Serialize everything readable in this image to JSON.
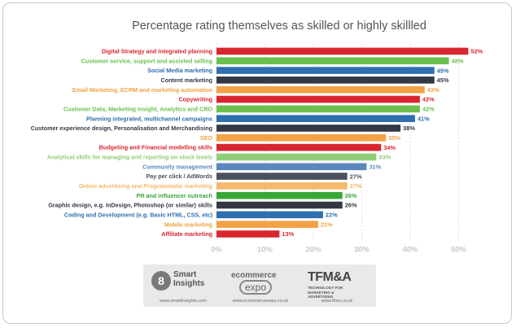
{
  "chart_data": {
    "type": "bar",
    "orientation": "horizontal",
    "title": "Percentage rating themselves as skilled or highly skillled",
    "xlim": [
      0,
      55
    ],
    "xticks": [
      "0%",
      "10%",
      "20%",
      "30%",
      "40%",
      "50%"
    ],
    "grid": true,
    "legend": "none",
    "categories": [
      "Digital Strategy and integrated planning",
      "Customer service, support and assisted selling",
      "Social Media marketing",
      "Content marketing",
      "Email Marketing, ECRM and marketing automation",
      "Copywriting",
      "Customer Data, Marketing Insight, Analytics and CRO",
      "Planning integrated, multichannel campaigns",
      "Customer experience design, Personalisation and Merchandising",
      "SEO",
      "Budgeting and Financial modelling skills",
      "Analytical skills for managing and reporting on stock levels",
      "Community management",
      "Pay per click / AdWords",
      "Online advertising and Programmatic marketing",
      "PR and influencer outreach",
      "Graphic design, e.g. InDesign, Photoshop (or similar) skills",
      "Coding and Development (e.g. Basic HTML, CSS, etc)",
      "Mobile marketing",
      "Affiliate marketing"
    ],
    "values": [
      52,
      48,
      45,
      45,
      43,
      42,
      42,
      41,
      38,
      35,
      34,
      33,
      31,
      27,
      27,
      26,
      26,
      22,
      21,
      13
    ],
    "value_labels": [
      "52%",
      "48%",
      "45%",
      "45%",
      "43%",
      "42%",
      "42%",
      "41%",
      "38%",
      "35%",
      "34%",
      "33%",
      "31%",
      "27%",
      "27%",
      "26%",
      "26%",
      "22%",
      "21%",
      "13%"
    ],
    "colors": [
      "#d9262e",
      "#6bbf4e",
      "#2e6fae",
      "#333845",
      "#f2a245",
      "#d9262e",
      "#6bbf4e",
      "#2e6fae",
      "#333845",
      "#f2a245",
      "#d9262e",
      "#8fcd79",
      "#5b87bf",
      "#4a4f5e",
      "#f5b86d",
      "#3aa638",
      "#333845",
      "#2e6fae",
      "#f2a245",
      "#d9262e"
    ]
  },
  "logos": [
    {
      "name": "Smart Insights",
      "line1": "Smart",
      "line2": "Insights",
      "url": "www.smartinsights.com"
    },
    {
      "name": "ecommerce expo",
      "line1": "ecommerce",
      "line2": "expo",
      "url": "www.ecommerceexpo.co.uk"
    },
    {
      "name": "TFM&A",
      "line1": "TFM&A",
      "line2": "TECHNOLOGY FOR MARKETING & ADVERTISING",
      "url": "www.tfma.co.uk"
    }
  ]
}
